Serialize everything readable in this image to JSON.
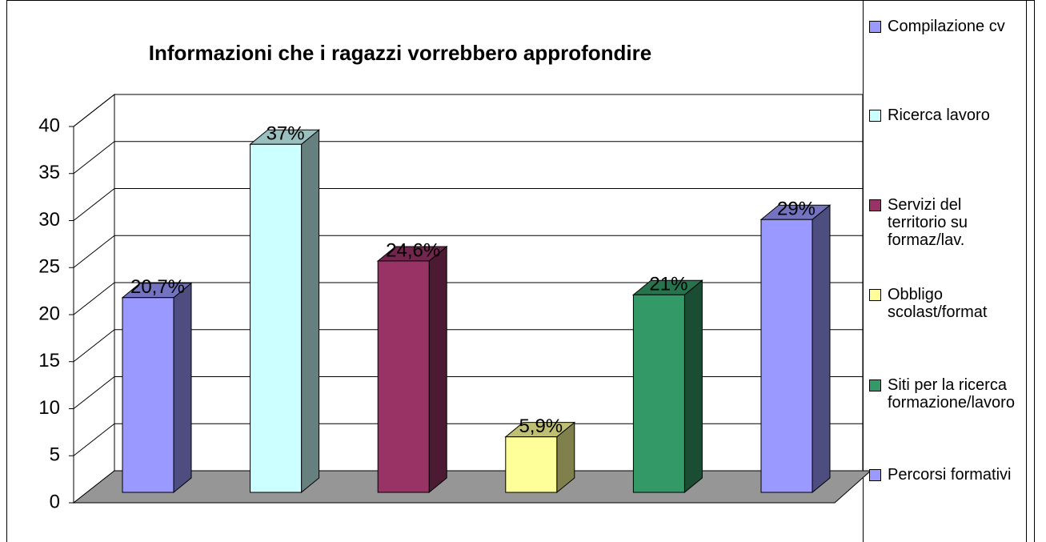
{
  "chart_data": {
    "type": "bar3d",
    "title": "Informazioni che i ragazzi vorrebbero approfondire",
    "categories": [
      "Compilazione cv",
      "Ricerca lavoro",
      "Servizi del territorio su formaz/lav.",
      "Obbligo scolast/format",
      "Siti per la ricerca formazione/lavoro",
      "Percorsi formativi"
    ],
    "values": [
      20.7,
      37,
      24.6,
      5.9,
      21,
      29
    ],
    "value_labels": [
      "20,7%",
      "37%",
      "24,6%",
      "5,9%",
      "21%",
      "29%"
    ],
    "colors": [
      "#9999ff",
      "#ccffff",
      "#993366",
      "#ffff99",
      "#339966",
      "#9999ff"
    ],
    "ylim": [
      0,
      40
    ],
    "yticks": [
      0,
      5,
      10,
      15,
      20,
      25,
      30,
      35,
      40
    ],
    "grid": true,
    "legend": "right"
  }
}
